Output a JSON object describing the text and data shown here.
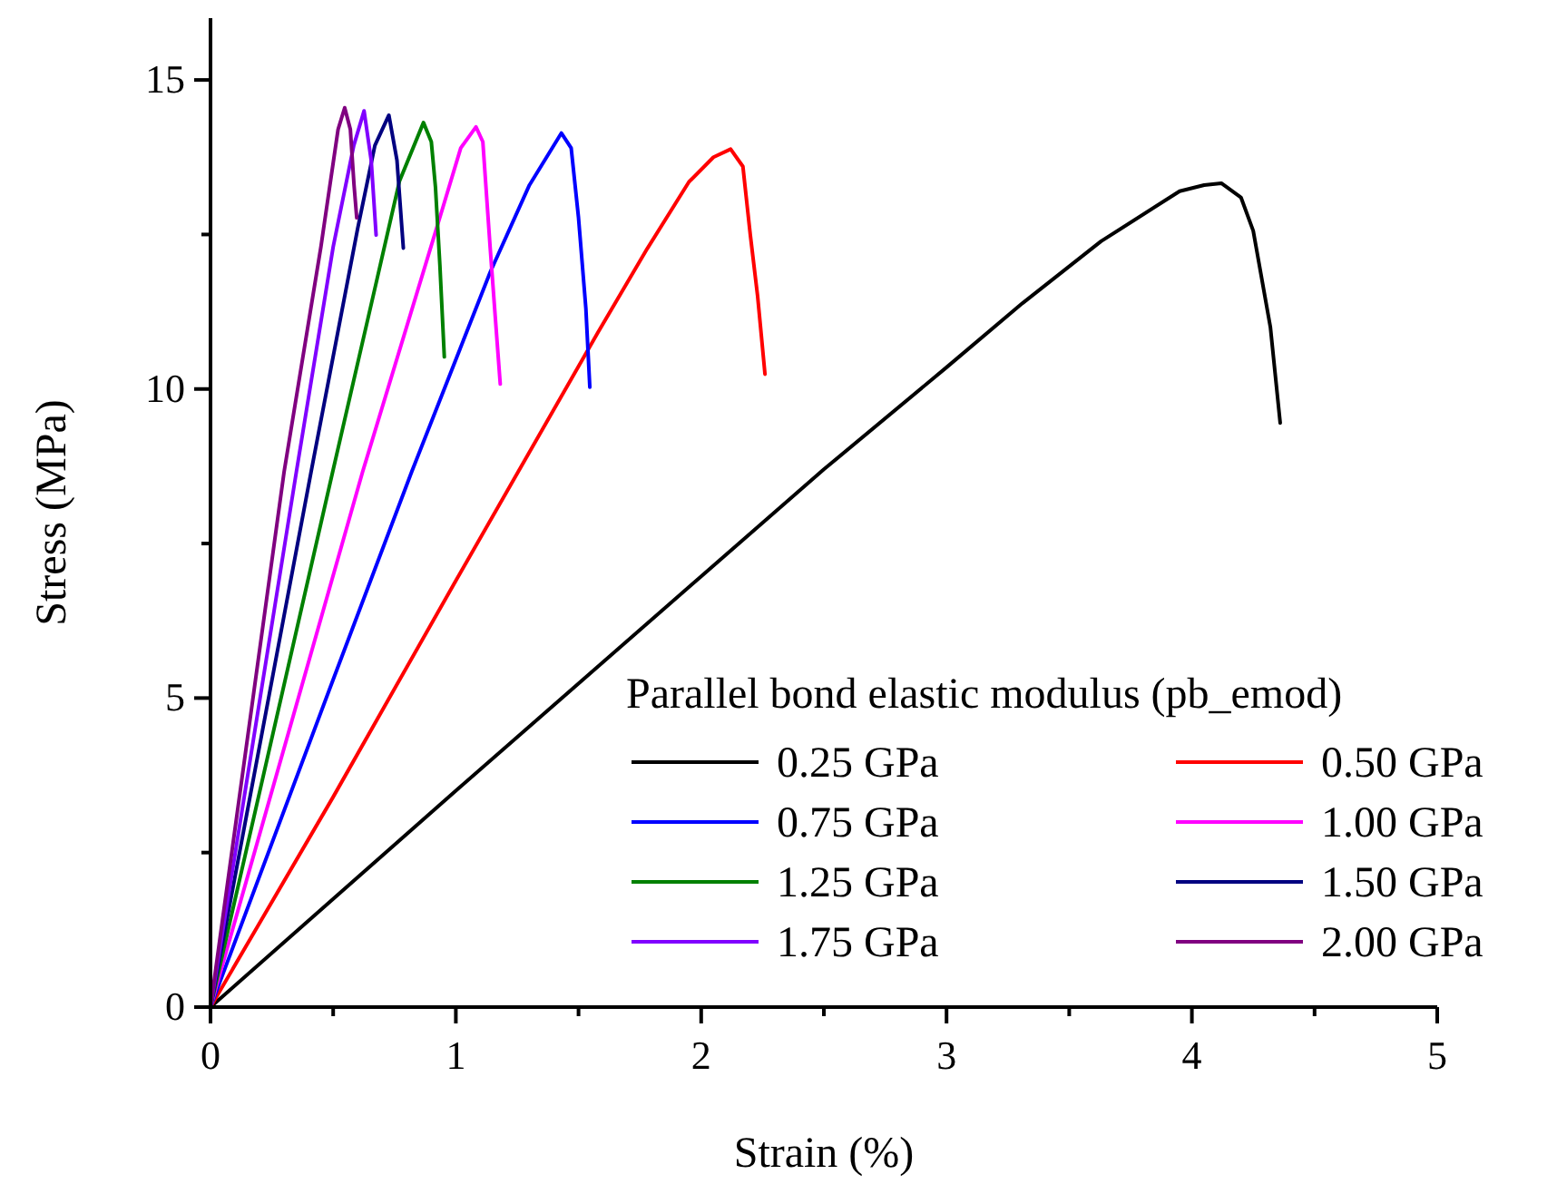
{
  "chart_data": {
    "type": "line",
    "xlabel": "Strain (%)",
    "ylabel": "Stress (MPa)",
    "legend_title": "Parallel bond elastic modulus (pb_emod)",
    "legend": "bottom right",
    "grid": false,
    "marker": "none",
    "line_style": "solid",
    "xlim": [
      0,
      5
    ],
    "ylim": [
      0,
      16
    ],
    "xticks": [
      0,
      {
        "value": 0.5,
        "label": null
      },
      1,
      {
        "value": 1.5,
        "label": null
      },
      2,
      {
        "value": 2.5,
        "label": null
      },
      3,
      {
        "value": 3.5,
        "label": null
      },
      4,
      {
        "value": 4.5,
        "label": null
      },
      5
    ],
    "yticks": [
      0,
      {
        "value": 2.5,
        "label": null
      },
      5,
      {
        "value": 7.5,
        "label": null
      },
      10,
      {
        "value": 12.5,
        "label": null
      },
      15
    ],
    "series": [
      {
        "name": "0.25 GPa",
        "color": "#000000",
        "x": [
          0,
          1,
          2,
          2.5,
          3,
          3.31,
          3.63,
          3.95,
          4.05,
          4.12,
          4.2,
          4.25,
          4.32,
          4.36
        ],
        "values": [
          0,
          3.5,
          6.97,
          8.7,
          10.35,
          11.39,
          12.39,
          13.2,
          13.3,
          13.33,
          13.1,
          12.56,
          11.0,
          9.45
        ]
      },
      {
        "name": "0.50 GPa",
        "color": "#ff0000",
        "x": [
          0,
          0.5,
          1,
          1.58,
          1.78,
          1.95,
          2.05,
          2.12,
          2.17,
          2.2,
          2.23,
          2.26
        ],
        "values": [
          0,
          3.4,
          6.9,
          10.92,
          12.27,
          13.35,
          13.75,
          13.88,
          13.6,
          12.5,
          11.5,
          10.24
        ]
      },
      {
        "name": "0.75 GPa",
        "color": "#0000ff",
        "x": [
          0,
          0.5,
          0.82,
          1.14,
          1.3,
          1.43,
          1.47,
          1.5,
          1.53,
          1.546
        ],
        "values": [
          0,
          5.3,
          8.66,
          11.89,
          13.3,
          14.14,
          13.9,
          12.77,
          11.3,
          10.03
        ]
      },
      {
        "name": "1.00 GPa",
        "color": "#ff00ff",
        "x": [
          0,
          0.62,
          0.942,
          1.02,
          1.082,
          1.11,
          1.14,
          1.16,
          1.181
        ],
        "values": [
          0,
          8.66,
          12.87,
          13.9,
          14.24,
          14.0,
          12.28,
          11.2,
          10.08
        ]
      },
      {
        "name": "1.25 GPa",
        "color": "#008000",
        "x": [
          0,
          0.498,
          0.68,
          0.77,
          0.868,
          0.9,
          0.917,
          0.935,
          0.953
        ],
        "values": [
          0,
          8.66,
          11.8,
          13.36,
          14.31,
          14.0,
          13.26,
          12.0,
          10.52
        ]
      },
      {
        "name": "1.50 GPa",
        "color": "#000080",
        "x": [
          0,
          0.41,
          0.6,
          0.67,
          0.727,
          0.76,
          0.786
        ],
        "values": [
          0,
          8.66,
          12.6,
          13.94,
          14.43,
          13.7,
          12.28
        ]
      },
      {
        "name": "1.75 GPa",
        "color": "#8000ff",
        "x": [
          0,
          0.35,
          0.5,
          0.584,
          0.626,
          0.655,
          0.675
        ],
        "values": [
          0,
          8.66,
          12.3,
          13.94,
          14.5,
          13.7,
          12.49
        ]
      },
      {
        "name": "2.00 GPa",
        "color": "#800080",
        "x": [
          0,
          0.3,
          0.45,
          0.52,
          0.547,
          0.57,
          0.585,
          0.596
        ],
        "values": [
          0,
          8.66,
          12.3,
          14.2,
          14.55,
          14.2,
          13.3,
          12.77
        ]
      }
    ]
  }
}
